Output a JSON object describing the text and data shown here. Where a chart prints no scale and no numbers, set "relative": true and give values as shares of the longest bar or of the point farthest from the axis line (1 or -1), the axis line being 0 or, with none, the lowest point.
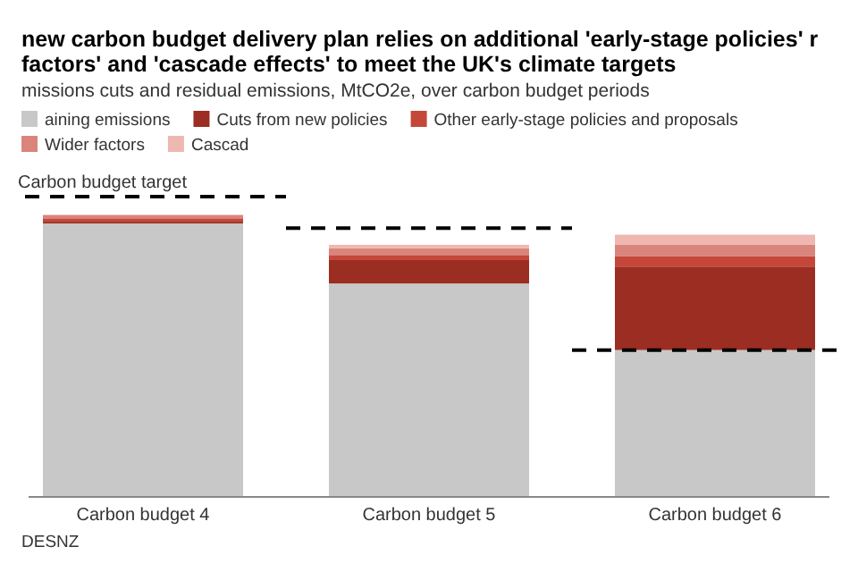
{
  "chart_data": {
    "type": "bar",
    "stacked": true,
    "relative": true,
    "title": "new carbon budget delivery plan relies on additional 'early-stage policies' r factors' and 'cascade effects' to meet the UK's climate targets",
    "subtitle": "missions cuts and residual emissions, MtCO2e, over carbon budget periods",
    "categories": [
      "Carbon budget 4",
      "Carbon budget 5",
      "Carbon budget 6"
    ],
    "legend": "top left",
    "annotations": [
      "DESNZ"
    ],
    "series": [
      {
        "name": "aining emissions",
        "color": "#c8c8c8",
        "values": [
          0.97,
          0.757,
          0.521
        ]
      },
      {
        "name": "Cuts from new policies",
        "color": "#9b2d22",
        "values": [
          0.006,
          0.083,
          0.296
        ]
      },
      {
        "name": "Other early-stage policies and proposals",
        "color": "#c4473a",
        "values": [
          0.012,
          0.018,
          0.036
        ]
      },
      {
        "name": "Wider factors",
        "color": "#d9857c",
        "values": [
          0.012,
          0.024,
          0.041
        ]
      },
      {
        "name": "Cascad",
        "color": "#efb7b1",
        "values": [
          0,
          0.012,
          0.036
        ]
      }
    ],
    "ref_lines": [
      {
        "axis": "y",
        "value": 1.065,
        "label": "Carbon budget target",
        "color": "#000000",
        "line_style": "dashed"
      },
      {
        "axis": "y",
        "value": 0.953,
        "color": "#000000",
        "line_style": "dashed"
      },
      {
        "axis": "y",
        "value": 0.521,
        "color": "#000000",
        "line_style": "dashed"
      }
    ]
  }
}
